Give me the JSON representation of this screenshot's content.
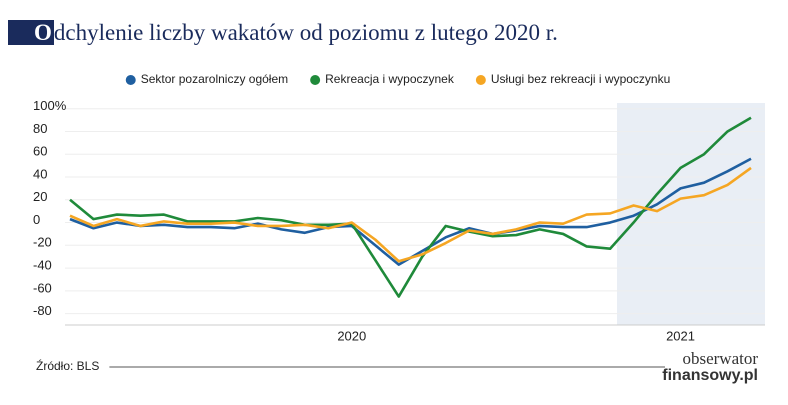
{
  "chart_data": {
    "type": "line",
    "title": "Odchylenie liczby wakatów od poziomu z lutego 2020 r.",
    "source": "Źródło: BLS",
    "logo": [
      "obserwator",
      "finansowy.pl"
    ],
    "categories": [
      null,
      null,
      null,
      null,
      null,
      null,
      null,
      null,
      null,
      null,
      null,
      null,
      "2020",
      null,
      null,
      null,
      null,
      null,
      null,
      null,
      null,
      null,
      null,
      null,
      null,
      null,
      "2021",
      null,
      null,
      null
    ],
    "series": [
      {
        "name": "Sektor pozarolniczy ogółem",
        "color": "#1f5fa0",
        "values": [
          3,
          -5,
          0,
          -3,
          -2,
          -4,
          -4,
          -5,
          -1,
          -6,
          -9,
          -4,
          -3,
          -20,
          -37,
          -25,
          -13,
          -5,
          -10,
          -7,
          -3,
          -4,
          -4,
          0,
          6,
          16,
          30,
          35,
          45,
          56
        ]
      },
      {
        "name": "Rekreacja i wypoczynek",
        "color": "#1f8a3a",
        "values": [
          20,
          3,
          7,
          6,
          7,
          1,
          1,
          1,
          4,
          2,
          -2,
          -2,
          -1,
          -33,
          -65,
          -30,
          -3,
          -8,
          -12,
          -11,
          -6,
          -10,
          -21,
          -23,
          0,
          25,
          48,
          60,
          80,
          92
        ]
      },
      {
        "name": "Usługi bez rekreacji i wypoczynku",
        "color": "#f5a623",
        "values": [
          6,
          -3,
          3,
          -3,
          1,
          -1,
          -1,
          0,
          -3,
          -3,
          -2,
          -5,
          0,
          -15,
          -34,
          -28,
          -18,
          -7,
          -10,
          -6,
          0,
          -1,
          7,
          8,
          15,
          10,
          21,
          24,
          33,
          48
        ]
      }
    ],
    "ylim": [
      -90,
      105
    ],
    "yticks": [
      {
        "value": 100,
        "label": "100%"
      },
      80,
      60,
      40,
      20,
      0,
      -20,
      -40,
      -60,
      -80
    ],
    "grid": true
  }
}
